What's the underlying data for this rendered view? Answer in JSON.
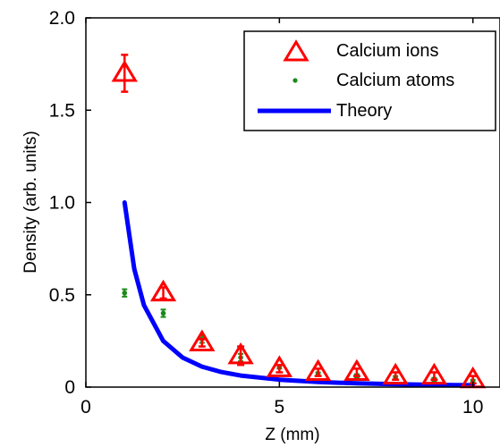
{
  "chart_data": {
    "type": "scatter",
    "xlabel": "Z (mm)",
    "ylabel": "Density (arb. units)",
    "xlim": [
      0,
      10.7
    ],
    "ylim": [
      0,
      2.0
    ],
    "x_ticks": [
      0,
      5,
      10
    ],
    "x_tick_labels": [
      "0",
      "5",
      "10"
    ],
    "y_ticks": [
      0,
      0.5,
      1.0,
      1.5,
      2.0
    ],
    "y_tick_labels": [
      "0",
      "0.5",
      "1.0",
      "1.5",
      "2.0"
    ],
    "grid": false,
    "legend_position": "top-right",
    "series": [
      {
        "name": "Calcium ions",
        "kind": "scatter",
        "marker": "triangle-open",
        "color": "#ff0000",
        "x": [
          1,
          2,
          3,
          4,
          5,
          6,
          7,
          8,
          9,
          10
        ],
        "y": [
          1.7,
          0.51,
          0.24,
          0.17,
          0.1,
          0.08,
          0.08,
          0.06,
          0.06,
          0.04
        ],
        "err": [
          0.1,
          0.03,
          0.02,
          0.05,
          0.02,
          0.02,
          0.02,
          0.02,
          0.02,
          0.02
        ]
      },
      {
        "name": "Calcium atoms",
        "kind": "scatter",
        "marker": "dot",
        "color": "#1a8a1a",
        "x": [
          1,
          2,
          3,
          4,
          5,
          6,
          7,
          8,
          9,
          10
        ],
        "y": [
          0.51,
          0.4,
          0.26,
          0.16,
          0.11,
          0.07,
          0.06,
          0.05,
          0.04,
          0.03
        ],
        "err": [
          0.02,
          0.02,
          0.02,
          0.02,
          0.01,
          0.01,
          0.01,
          0.01,
          0.01,
          0.01
        ]
      },
      {
        "name": "Theory",
        "kind": "line",
        "color": "#0000ff",
        "x": [
          1,
          1.25,
          1.5,
          2,
          2.5,
          3,
          3.5,
          4,
          5,
          6,
          7,
          8,
          9,
          10
        ],
        "y": [
          1.0,
          0.64,
          0.444,
          0.25,
          0.16,
          0.111,
          0.082,
          0.0625,
          0.04,
          0.0278,
          0.0204,
          0.0156,
          0.0123,
          0.01
        ]
      }
    ]
  }
}
